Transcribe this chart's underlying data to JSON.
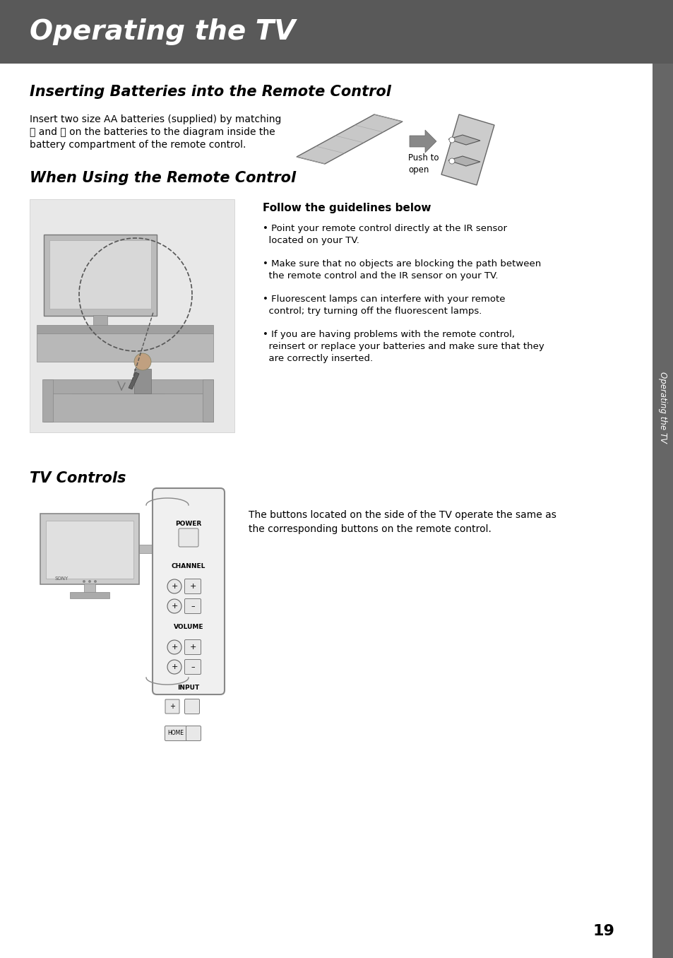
{
  "header_bg_color": "#595959",
  "header_text": "Operating the TV",
  "header_text_color": "#ffffff",
  "page_bg_color": "#ffffff",
  "section1_title": "Inserting Batteries into the Remote Control",
  "section1_body_line1": "Insert two size AA batteries (supplied) by matching",
  "section1_body_line2": "➕ and ➖ on the batteries to the diagram inside the",
  "section1_body_line3": "battery compartment of the remote control.",
  "push_to_open_label": "Push to\nopen",
  "section2_title": "When Using the Remote Control",
  "section2_subtitle": "Follow the guidelines below",
  "section2_bullets": [
    "Point your remote control directly at the IR sensor\n  located on your TV.",
    "Make sure that no objects are blocking the path between\n  the remote control and the IR sensor on your TV.",
    "Fluorescent lamps can interfere with your remote\n  control; try turning off the fluorescent lamps.",
    "If you are having problems with the remote control,\n  reinsert or replace your batteries and make sure that they\n  are correctly inserted."
  ],
  "section3_title": "TV Controls",
  "section3_body": "The buttons located on the side of the TV operate the same as\nthe corresponding buttons on the remote control.",
  "sidebar_text": "Operating the TV",
  "page_number": "19",
  "body_text_color": "#000000",
  "sidebar_bg_color": "#666666",
  "sidebar_text_color": "#ffffff"
}
